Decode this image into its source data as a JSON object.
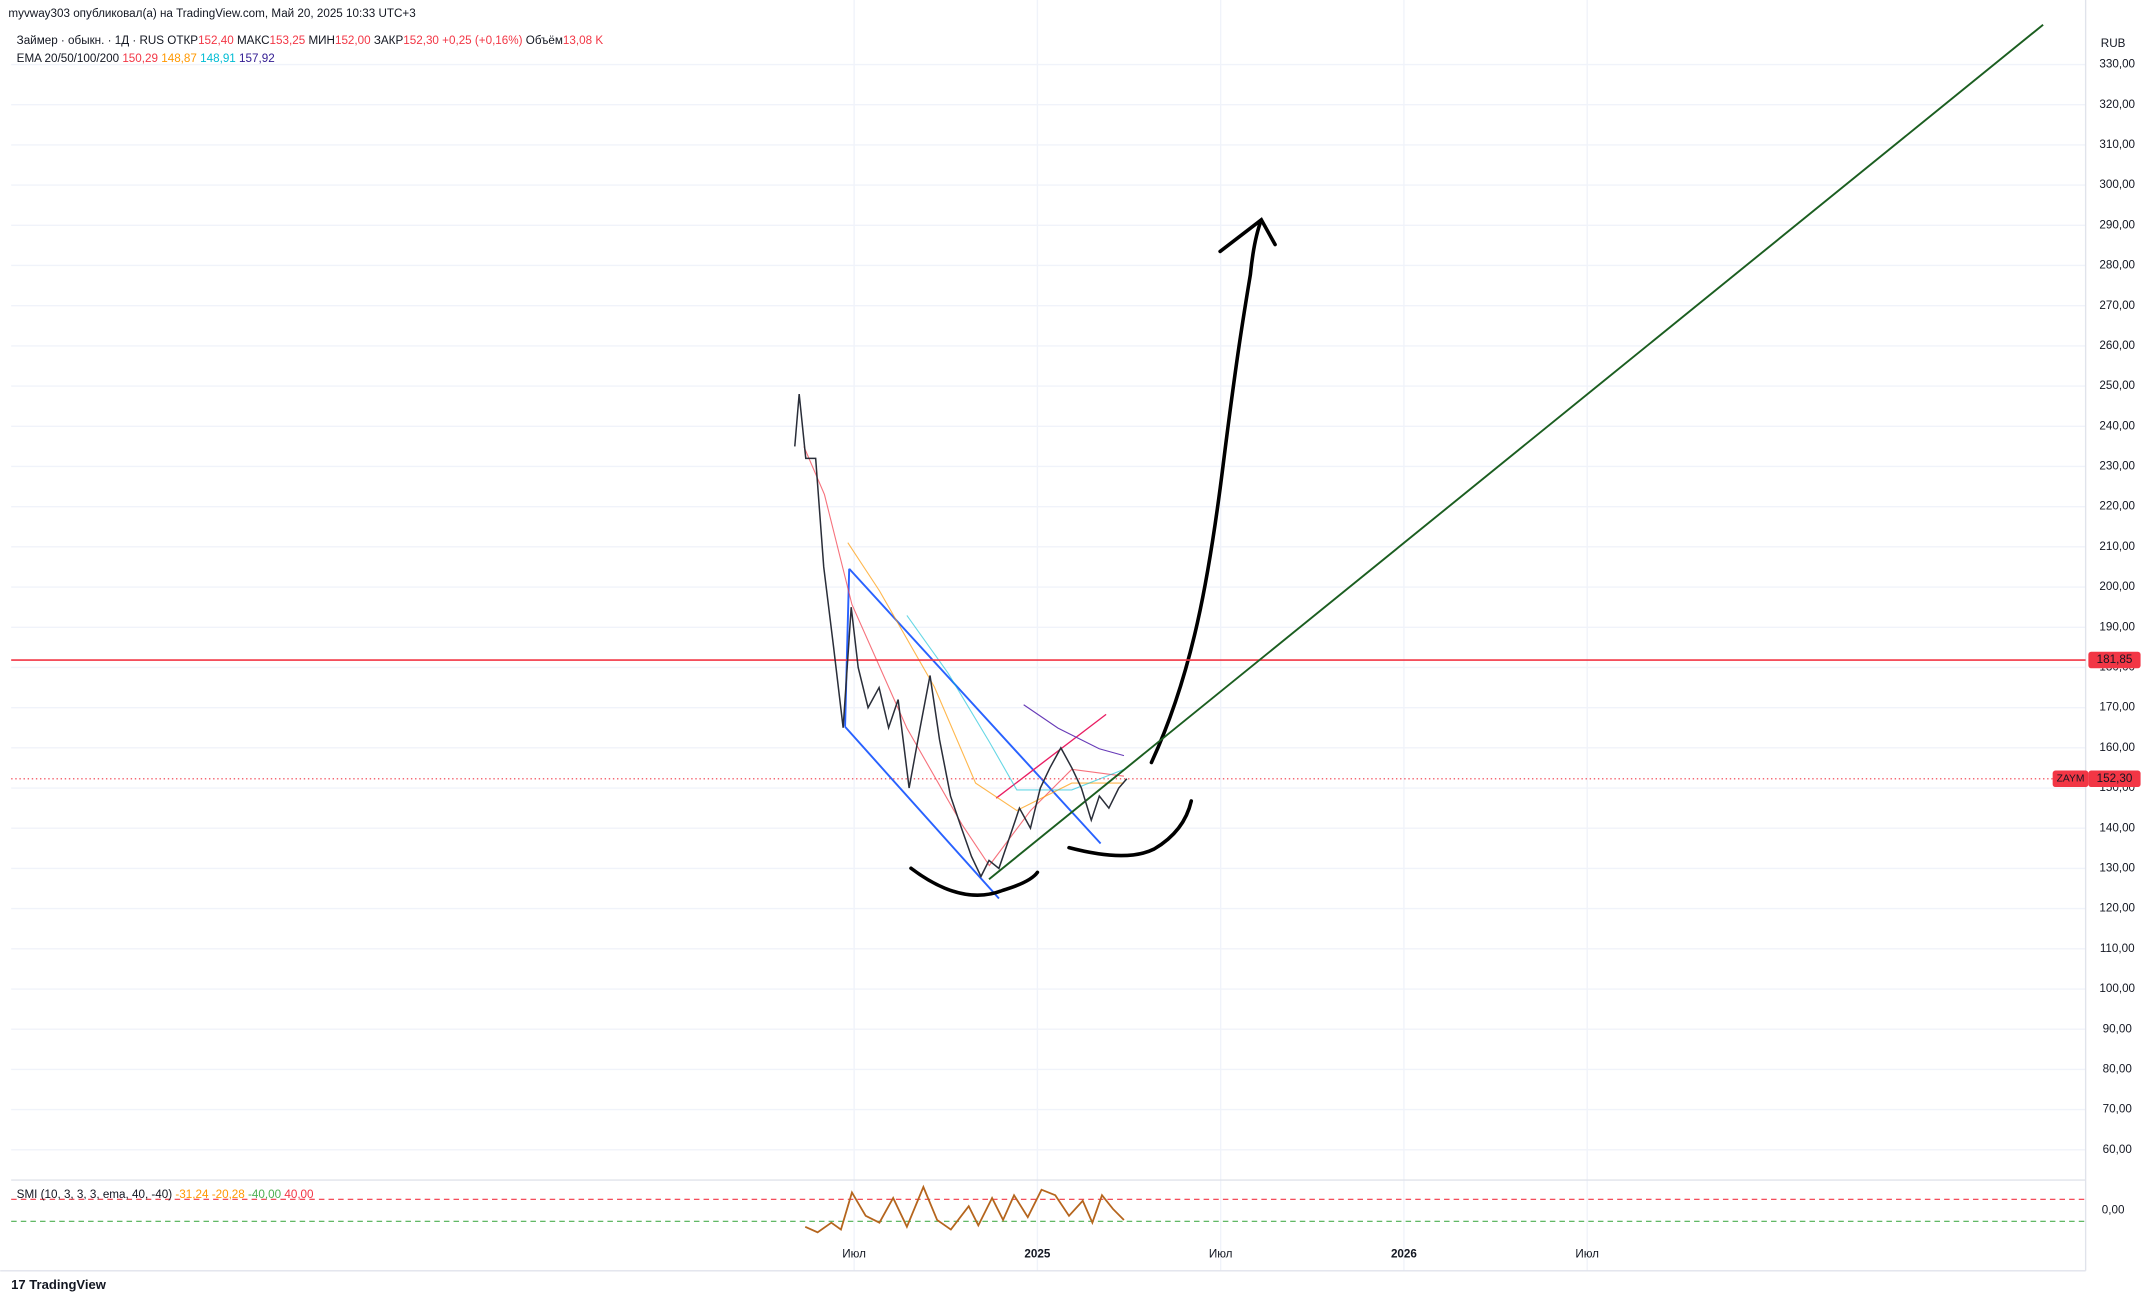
{
  "header": {
    "published": "myvway303 опубликовал(а) на TradingView.com, Май 20, 2025 10:33 UTC+3",
    "symbol": "Займер · обыкн. · 1Д · RUS",
    "ohlc": [
      {
        "label": "ОТКР",
        "value": "152,40"
      },
      {
        "label": "МАКС",
        "value": "153,25"
      },
      {
        "label": "МИН",
        "value": "152,00"
      },
      {
        "label": "ЗАКР",
        "value": "152,30"
      }
    ],
    "change": "+0,25 (+0,16%)",
    "volume_label": "Объём",
    "volume": "13,08 K",
    "currency": "RUB"
  },
  "indicators": {
    "ema": {
      "name": "EMA 20/50/100/200",
      "values": [
        {
          "text": "150,29",
          "color": "#f23645"
        },
        {
          "text": "148,87",
          "color": "#ff9800"
        },
        {
          "text": "148,91",
          "color": "#00bcd4"
        },
        {
          "text": "157,92",
          "color": "#311b92"
        }
      ]
    },
    "smi": {
      "name": "SMI (10, 3, 3, 3, ema, 40, -40)",
      "values": [
        {
          "text": "-31,24",
          "color": "#ff9800"
        },
        {
          "text": "-20,28",
          "color": "#ff9800"
        },
        {
          "text": "-40,00",
          "color": "#4caf50"
        },
        {
          "text": "40,00",
          "color": "#f23645"
        }
      ],
      "zero_label": "0,00"
    }
  },
  "chart_data": {
    "type": "line",
    "color": "#2a2e39",
    "x": [
      2024.338,
      2024.35,
      2024.368,
      2024.395,
      2024.417,
      2024.444,
      2024.47,
      2024.492,
      2024.511,
      2024.538,
      2024.568,
      2024.594,
      2024.62,
      2024.65,
      2024.68,
      2024.707,
      2024.733,
      2024.763,
      2024.793,
      2024.82,
      2024.846,
      2024.868,
      2024.895,
      2024.925,
      2024.951,
      2024.981,
      2025.008,
      2025.034,
      2025.064,
      2025.094,
      2025.12,
      2025.147,
      2025.169,
      2025.195,
      2025.222,
      2025.244
    ],
    "values": [
      235,
      248,
      232,
      232,
      205,
      185,
      165,
      195,
      180,
      170,
      175,
      165,
      172,
      150,
      165,
      178,
      162,
      148,
      140,
      133,
      128,
      132,
      130,
      138,
      145,
      140,
      150,
      155,
      160,
      155,
      150,
      142,
      148,
      145,
      150,
      152.3
    ],
    "xlim": [
      2022.2,
      2027.86
    ],
    "xticks": [
      {
        "value": 2024.5,
        "label": "Июл"
      },
      2025,
      {
        "value": 2025.5,
        "label": "Июл"
      },
      2026,
      {
        "value": 2026.5,
        "label": "Июл"
      }
    ],
    "ylim": [
      52.8,
      339.9
    ],
    "yticks": [
      {
        "value": 60,
        "label": "60,00"
      },
      {
        "value": 70,
        "label": "70,00"
      },
      {
        "value": 80,
        "label": "80,00"
      },
      {
        "value": 90,
        "label": "90,00"
      },
      {
        "value": 100,
        "label": "100,00"
      },
      {
        "value": 110,
        "label": "110,00"
      },
      {
        "value": 120,
        "label": "120,00"
      },
      {
        "value": 130,
        "label": "130,00"
      },
      {
        "value": 140,
        "label": "140,00"
      },
      {
        "value": 150,
        "label": "150,00"
      },
      {
        "value": 160,
        "label": "160,00"
      },
      {
        "value": 170,
        "label": "170,00"
      },
      {
        "value": 180,
        "label": "180,00"
      },
      {
        "value": 190,
        "label": "190,00"
      },
      {
        "value": 200,
        "label": "200,00"
      },
      {
        "value": 210,
        "label": "210,00"
      },
      {
        "value": 220,
        "label": "220,00"
      },
      {
        "value": 230,
        "label": "230,00"
      },
      {
        "value": 240,
        "label": "240,00"
      },
      {
        "value": 250,
        "label": "250,00"
      },
      {
        "value": 260,
        "label": "260,00"
      },
      {
        "value": 270,
        "label": "270,00"
      },
      {
        "value": 280,
        "label": "280,00"
      },
      {
        "value": 290,
        "label": "290,00"
      },
      {
        "value": 300,
        "label": "300,00"
      },
      {
        "value": 310,
        "label": "310,00"
      },
      {
        "value": 320,
        "label": "320,00"
      },
      {
        "value": 330,
        "label": "330,00"
      }
    ],
    "grid": true,
    "hline": {
      "value": 181.85,
      "label": "181,85",
      "color": "#f23645"
    },
    "last_price": {
      "value": 152.3,
      "label": "152,30",
      "symbol": "ZAYM",
      "color": "#f23645"
    },
    "trend_line": {
      "start": [
        2024.868,
        127.3
      ],
      "end": [
        2027.744,
        339.9
      ],
      "color": "#1b5e20"
    }
  },
  "footer": {
    "logo": "TradingView"
  }
}
